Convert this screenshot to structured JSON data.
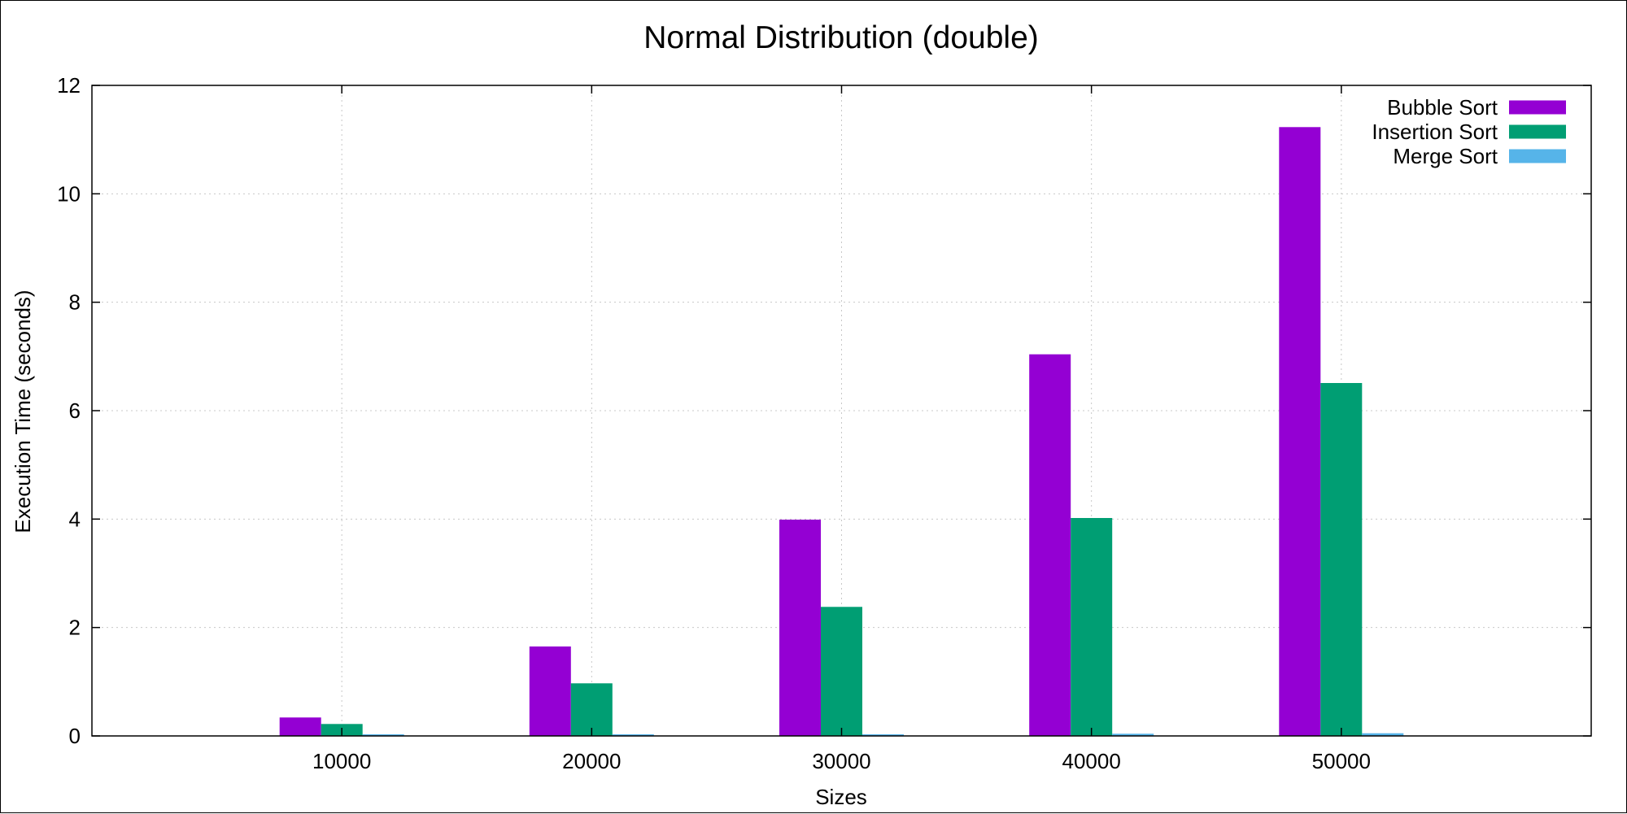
{
  "chart_data": {
    "type": "bar",
    "title": "Normal Distribution (double)",
    "xlabel": "Sizes",
    "ylabel": "Execution Time (seconds)",
    "categories": [
      "10000",
      "20000",
      "30000",
      "40000",
      "50000"
    ],
    "series": [
      {
        "name": "Bubble Sort",
        "color": "#9400d3",
        "values": [
          0.34,
          1.65,
          3.99,
          7.04,
          11.23
        ]
      },
      {
        "name": "Insertion Sort",
        "color": "#009e73",
        "values": [
          0.22,
          0.97,
          2.38,
          4.02,
          6.51
        ]
      },
      {
        "name": "Merge Sort",
        "color": "#56b4e9",
        "values": [
          0.01,
          0.02,
          0.03,
          0.04,
          0.05
        ]
      }
    ],
    "ylim": [
      0,
      12
    ],
    "yticks": [
      0,
      2,
      4,
      6,
      8,
      10,
      12
    ],
    "grid": true,
    "grid_style": "dotted",
    "legend_position": "top-right"
  }
}
